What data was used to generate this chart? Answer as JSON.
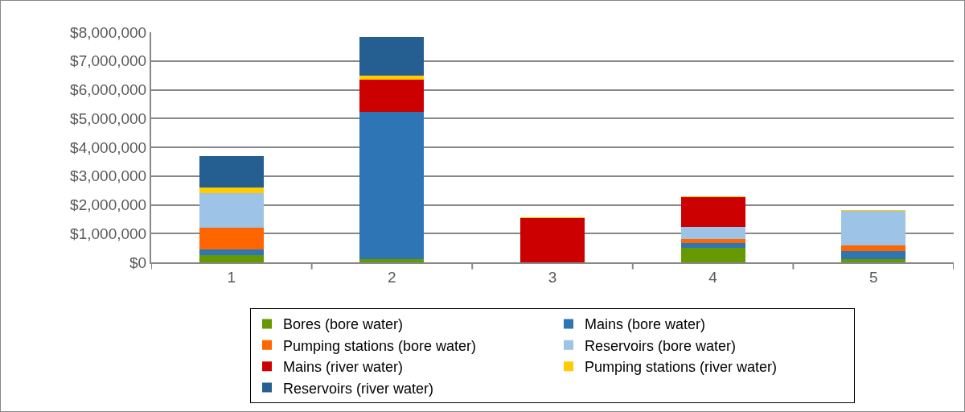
{
  "chart_data": {
    "type": "bar",
    "stacked": true,
    "categories": [
      "1",
      "2",
      "3",
      "4",
      "5"
    ],
    "series": [
      {
        "name": "Bores (bore water)",
        "color": "#669900",
        "values": [
          240000,
          110000,
          0,
          500000,
          110000
        ]
      },
      {
        "name": "Mains (bore water)",
        "color": "#2e75b6",
        "values": [
          210000,
          5120000,
          0,
          180000,
          290000
        ]
      },
      {
        "name": "Pumping stations (bore water)",
        "color": "#ff6600",
        "values": [
          740000,
          0,
          0,
          120000,
          200000
        ]
      },
      {
        "name": "Reservoirs (bore water)",
        "color": "#9dc3e6",
        "values": [
          1210000,
          0,
          0,
          430000,
          1180000
        ]
      },
      {
        "name": "Mains (river water)",
        "color": "#cc0000",
        "values": [
          0,
          1120000,
          1530000,
          1040000,
          0
        ]
      },
      {
        "name": "Pumping stations (river water)",
        "color": "#ffcc00",
        "values": [
          210000,
          140000,
          50000,
          20000,
          50000
        ]
      },
      {
        "name": "Reservoirs (river water)",
        "color": "#255e91",
        "values": [
          1070000,
          1330000,
          0,
          0,
          0
        ]
      }
    ],
    "ylim": [
      0,
      8000000
    ],
    "yticks": [
      {
        "value": 0,
        "label": "$0"
      },
      {
        "value": 1000000,
        "label": "$1,000,000"
      },
      {
        "value": 2000000,
        "label": "$2,000,000"
      },
      {
        "value": 3000000,
        "label": "$3,000,000"
      },
      {
        "value": 4000000,
        "label": "$4,000,000"
      },
      {
        "value": 5000000,
        "label": "$5,000,000"
      },
      {
        "value": 6000000,
        "label": "$6,000,000"
      },
      {
        "value": 7000000,
        "label": "$7,000,000"
      },
      {
        "value": 8000000,
        "label": "$8,000,000"
      }
    ],
    "grid": "y",
    "legend": "bottom"
  }
}
